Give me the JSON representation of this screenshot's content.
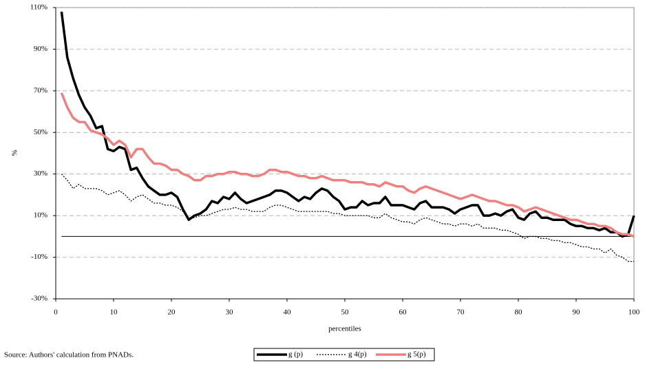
{
  "chart_data": {
    "type": "line",
    "y_label": "%",
    "x_label": "percentiles",
    "source": "Source: Authors' calculation from PNADs.",
    "x": [
      1,
      2,
      3,
      4,
      5,
      6,
      7,
      8,
      9,
      10,
      11,
      12,
      13,
      14,
      15,
      16,
      17,
      18,
      19,
      20,
      21,
      22,
      23,
      24,
      25,
      26,
      27,
      28,
      29,
      30,
      31,
      32,
      33,
      34,
      35,
      36,
      37,
      38,
      39,
      40,
      41,
      42,
      43,
      44,
      45,
      46,
      47,
      48,
      49,
      50,
      51,
      52,
      53,
      54,
      55,
      56,
      57,
      58,
      59,
      60,
      61,
      62,
      63,
      64,
      65,
      66,
      67,
      68,
      69,
      70,
      71,
      72,
      73,
      74,
      75,
      76,
      77,
      78,
      79,
      80,
      81,
      82,
      83,
      84,
      85,
      86,
      87,
      88,
      89,
      90,
      91,
      92,
      93,
      94,
      95,
      96,
      97,
      98,
      99,
      100
    ],
    "series": [
      {
        "name": "g (p)",
        "color": "#000000",
        "line_style": "solid",
        "values": [
          108,
          86,
          76,
          68,
          62,
          58,
          52,
          53,
          42,
          41,
          43,
          42,
          32,
          33,
          28,
          24,
          22,
          20,
          20,
          21,
          19,
          13,
          8,
          10,
          11,
          13,
          17,
          16,
          19,
          18,
          21,
          18,
          16,
          17,
          18,
          19,
          20,
          22,
          22,
          21,
          19,
          17,
          19,
          18,
          21,
          23,
          22,
          19,
          17,
          13,
          14,
          14,
          17,
          15,
          16,
          16,
          19,
          15,
          15,
          15,
          14,
          13,
          16,
          17,
          14,
          14,
          14,
          13,
          11,
          13,
          14,
          15,
          15,
          10,
          10,
          11,
          10,
          12,
          13,
          9,
          8,
          11,
          12,
          9,
          9,
          8,
          8,
          8,
          6,
          5,
          5,
          4,
          4,
          3,
          4,
          2,
          2,
          0,
          1,
          10
        ]
      },
      {
        "name": "g 4(p)",
        "color": "#000000",
        "line_style": "dotted",
        "values": [
          30,
          27,
          23,
          25,
          23,
          23,
          23,
          22,
          20,
          21,
          22,
          20,
          17,
          19,
          20,
          18,
          16,
          16,
          15,
          15,
          14,
          12,
          9,
          9,
          10,
          10,
          11,
          12,
          13,
          13,
          14,
          13,
          13,
          12,
          12,
          12,
          14,
          15,
          15,
          14,
          13,
          12,
          12,
          12,
          12,
          12,
          12,
          11,
          11,
          10,
          10,
          10,
          10,
          10,
          9,
          9,
          11,
          9,
          8,
          7,
          7,
          6,
          8,
          9,
          8,
          7,
          6,
          6,
          5,
          6,
          6,
          5,
          6,
          4,
          4,
          4,
          3,
          3,
          2,
          1,
          -1,
          0,
          0,
          -1,
          -1,
          -2,
          -2,
          -3,
          -3,
          -4,
          -5,
          -5,
          -6,
          -6,
          -8,
          -6,
          -9,
          -10,
          -12,
          -12
        ]
      },
      {
        "name": "g 5(p)",
        "color": "#f08080",
        "line_style": "solid",
        "values": [
          69,
          62,
          57,
          55,
          55,
          51,
          50,
          49,
          47,
          44,
          46,
          44,
          38,
          42,
          42,
          38,
          35,
          35,
          34,
          32,
          32,
          30,
          29,
          27,
          27,
          29,
          29,
          30,
          30,
          31,
          31,
          30,
          30,
          29,
          29,
          30,
          32,
          32,
          31,
          31,
          30,
          29,
          29,
          28,
          28,
          29,
          28,
          27,
          27,
          27,
          26,
          26,
          26,
          25,
          25,
          24,
          26,
          25,
          24,
          24,
          22,
          21,
          23,
          24,
          23,
          22,
          21,
          20,
          19,
          18,
          19,
          20,
          19,
          18,
          17,
          17,
          16,
          15,
          15,
          14,
          12,
          13,
          14,
          13,
          12,
          11,
          10,
          9,
          8,
          8,
          7,
          6,
          6,
          5,
          5,
          4,
          2,
          1,
          1,
          0
        ]
      }
    ],
    "xlim": [
      0,
      100
    ],
    "xticks": [
      0,
      10,
      20,
      30,
      40,
      50,
      60,
      70,
      80,
      90,
      100
    ],
    "ylim": [
      -30,
      110
    ],
    "yticks": [
      {
        "value": -30,
        "label": "-30%"
      },
      {
        "value": -10,
        "label": "-10%"
      },
      {
        "value": 10,
        "label": "10%"
      },
      {
        "value": 30,
        "label": "30%"
      },
      {
        "value": 50,
        "label": "50%"
      },
      {
        "value": 70,
        "label": "70%"
      },
      {
        "value": 90,
        "label": "90%"
      },
      {
        "value": 110,
        "label": "110%"
      }
    ],
    "grid": true,
    "zero_line": true,
    "legend": "bottom"
  }
}
